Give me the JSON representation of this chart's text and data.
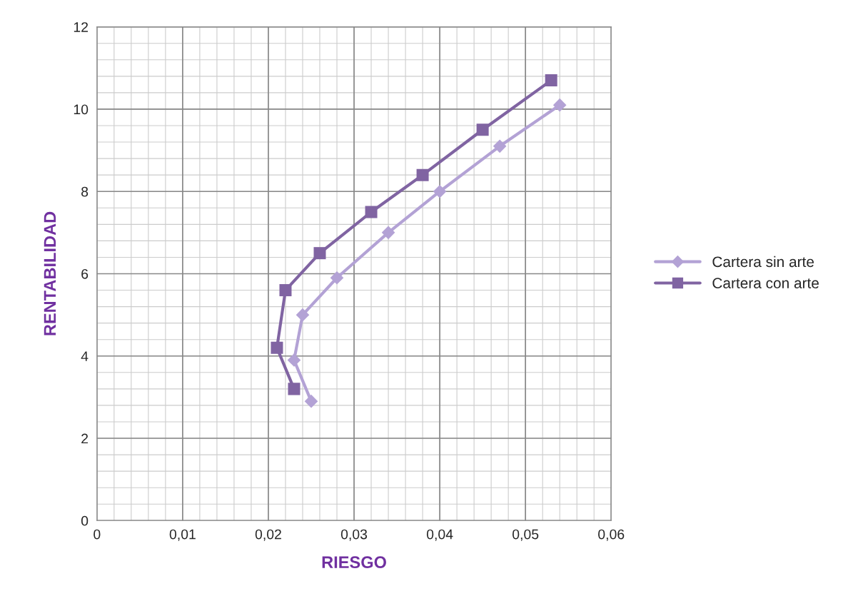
{
  "chart_data": {
    "type": "line",
    "xlabel": "RIESGO",
    "ylabel": "RENTABILIDAD",
    "xlim": [
      0,
      0.06
    ],
    "xticks": [
      {
        "value": 0,
        "label": "0"
      },
      {
        "value": 0.01,
        "label": "0,01"
      },
      {
        "value": 0.02,
        "label": "0,02"
      },
      {
        "value": 0.03,
        "label": "0,03"
      },
      {
        "value": 0.04,
        "label": "0,04"
      },
      {
        "value": 0.05,
        "label": "0,05"
      },
      {
        "value": 0.06,
        "label": "0,06"
      }
    ],
    "ylim": [
      0,
      12
    ],
    "yticks": [
      0,
      2,
      4,
      6,
      8,
      10,
      12
    ],
    "grid": true,
    "legend": "right",
    "series": [
      {
        "name": "Cartera sin arte",
        "color": "#b3a2d5",
        "marker": "diamond",
        "x": [
          0.025,
          0.023,
          0.024,
          0.028,
          0.034,
          0.04,
          0.047,
          0.054
        ],
        "values": [
          2.9,
          3.9,
          5.0,
          5.9,
          7.0,
          8.0,
          9.1,
          10.1
        ]
      },
      {
        "name": "Cartera con arte",
        "color": "#8064a2",
        "marker": "square",
        "x": [
          0.023,
          0.021,
          0.022,
          0.026,
          0.032,
          0.038,
          0.045,
          0.053
        ],
        "values": [
          3.2,
          4.2,
          5.6,
          6.5,
          7.5,
          8.4,
          9.5,
          10.7
        ]
      }
    ]
  }
}
